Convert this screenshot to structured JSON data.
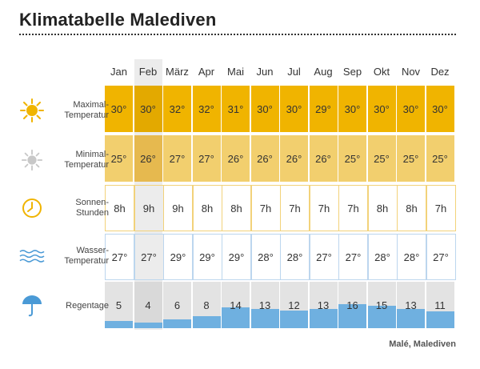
{
  "title": "Klimatabelle Malediven",
  "months": [
    "Jan",
    "Feb",
    "März",
    "Apr",
    "Mai",
    "Jun",
    "Jul",
    "Aug",
    "Sep",
    "Okt",
    "Nov",
    "Dez"
  ],
  "highlight_month": "Feb",
  "rows": {
    "max_temp": {
      "label_line1": "Maximal-",
      "label_line2": "Temperatur",
      "icon": "sun-icon",
      "values": [
        "30°",
        "30°",
        "32°",
        "32°",
        "31°",
        "30°",
        "30°",
        "29°",
        "30°",
        "30°",
        "30°",
        "30°"
      ]
    },
    "min_temp": {
      "label_line1": "Minimal-",
      "label_line2": "Temperatur",
      "icon": "pale-sun-icon",
      "values": [
        "25°",
        "26°",
        "27°",
        "27°",
        "26°",
        "26°",
        "26°",
        "26°",
        "25°",
        "25°",
        "25°",
        "25°"
      ]
    },
    "sun_hours": {
      "label_line1": "Sonnen-",
      "label_line2": "Stunden",
      "icon": "clock-icon",
      "values": [
        "8h",
        "9h",
        "9h",
        "8h",
        "8h",
        "7h",
        "7h",
        "7h",
        "7h",
        "8h",
        "8h",
        "7h"
      ]
    },
    "water_temp": {
      "label_line1": "Wasser-",
      "label_line2": "Temperatur",
      "icon": "waves-icon",
      "values": [
        "27°",
        "27°",
        "29°",
        "29°",
        "29°",
        "28°",
        "28°",
        "27°",
        "27°",
        "28°",
        "28°",
        "27°"
      ]
    },
    "rain_days": {
      "label_line1": "Regentage",
      "label_line2": "",
      "icon": "umbrella-icon",
      "values": [
        "5",
        "4",
        "6",
        "8",
        "14",
        "13",
        "12",
        "13",
        "16",
        "15",
        "13",
        "11"
      ],
      "max_days": 31
    }
  },
  "footer": "Malé, Malediven",
  "colors": {
    "max": "#f0b400",
    "min": "#f2cf6e",
    "rain_bar": "#6fb0e0",
    "sun_icon": "#f0b400",
    "water_icon": "#4a9ad6"
  }
}
